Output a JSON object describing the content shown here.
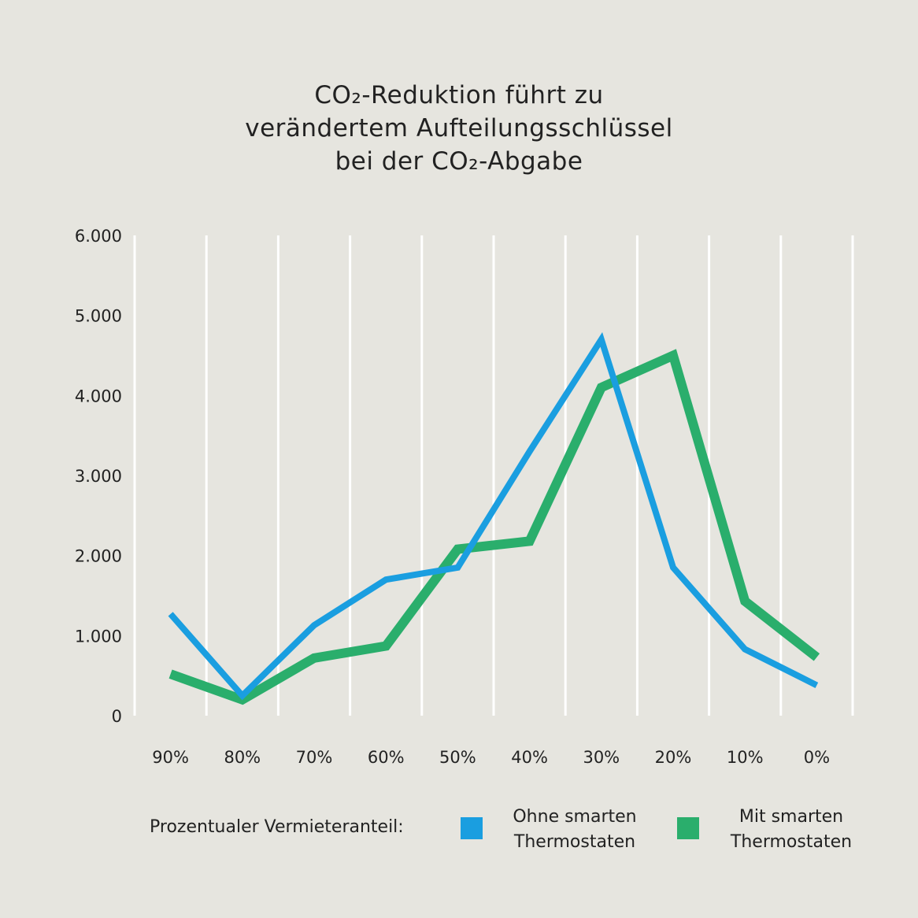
{
  "title_lines": [
    "CO₂-Reduktion führt zu",
    "verändertem Aufteilungsschlüssel",
    "bei der CO₂-Abgabe"
  ],
  "legend": {
    "label": "Prozentualer Vermieteranteil:",
    "items": [
      {
        "text": "Ohne smarten\nThermostaten",
        "color": "#1a9ee0"
      },
      {
        "text": "Mit smarten\nThermostaten",
        "color": "#2aae6c"
      }
    ]
  },
  "chart_data": {
    "type": "line",
    "title": "CO₂-Reduktion führt zu verändertem Aufteilungsschlüssel bei der CO₂-Abgabe",
    "xlabel": "Prozentualer Vermieteranteil:",
    "ylabel": "",
    "categories": [
      "90%",
      "80%",
      "70%",
      "60%",
      "50%",
      "40%",
      "30%",
      "20%",
      "10%",
      "0%"
    ],
    "ylim": [
      0,
      6000
    ],
    "yticks": [
      0,
      1000,
      2000,
      3000,
      4000,
      5000,
      6000
    ],
    "ytick_labels": [
      "0",
      "1.000",
      "2.000",
      "3.000",
      "4.000",
      "5.000",
      "6.000"
    ],
    "grid": "vertical",
    "legend_position": "bottom",
    "series": [
      {
        "name": "Ohne smarten Thermostaten",
        "color": "#1a9ee0",
        "values": [
          1270,
          250,
          1130,
          1700,
          1850,
          3300,
          4700,
          1850,
          830,
          380
        ]
      },
      {
        "name": "Mit smarten Thermostaten",
        "color": "#2aae6c",
        "values": [
          520,
          200,
          720,
          870,
          2080,
          2180,
          4100,
          4500,
          1430,
          730
        ]
      }
    ]
  }
}
